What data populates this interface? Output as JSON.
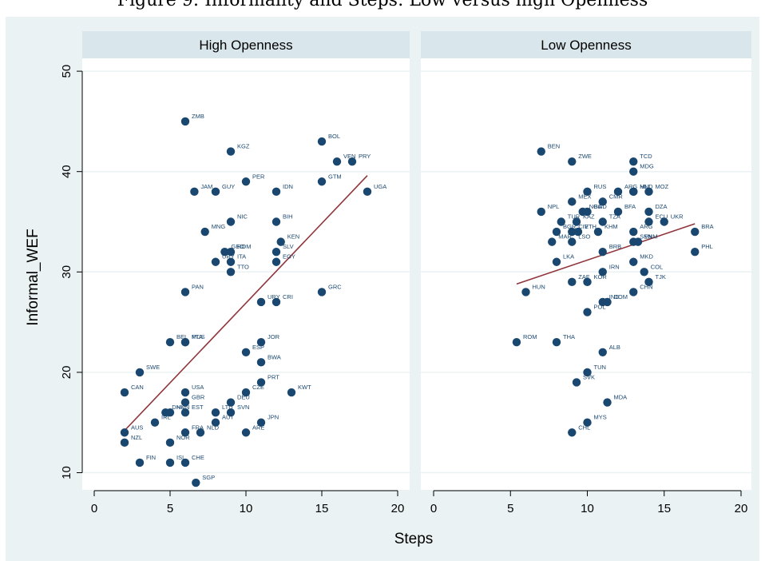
{
  "figure_title": "Figure 9: Informality and Steps: Low versus high Openness",
  "chart_data": {
    "type": "scatter",
    "xlabel": "Steps",
    "ylabel": "Informal_WEF",
    "xlim": [
      0,
      20
    ],
    "ylim": [
      9,
      50
    ],
    "xticks": [
      0,
      5,
      10,
      15,
      20
    ],
    "yticks": [
      10,
      20,
      30,
      40,
      50
    ],
    "colors": {
      "point": "#1a476f",
      "fit": "#90353b",
      "panel_header": "#d9e6eb",
      "background": "#eaf2f3"
    },
    "panels": [
      {
        "title": "High Openness",
        "fit_line": {
          "x": [
            2,
            18
          ],
          "y": [
            14.2,
            39.6
          ]
        },
        "points": [
          {
            "label": "ZMB",
            "x": 6,
            "y": 45
          },
          {
            "label": "KGZ",
            "x": 9,
            "y": 42
          },
          {
            "label": "BOL",
            "x": 15,
            "y": 43
          },
          {
            "label": "VEN",
            "x": 16,
            "y": 41
          },
          {
            "label": "PRY",
            "x": 17,
            "y": 41
          },
          {
            "label": "PER",
            "x": 10,
            "y": 39
          },
          {
            "label": "GTM",
            "x": 15,
            "y": 39
          },
          {
            "label": "JAM",
            "x": 6.6,
            "y": 38
          },
          {
            "label": "GUY",
            "x": 8,
            "y": 38
          },
          {
            "label": "IDN",
            "x": 12,
            "y": 38
          },
          {
            "label": "UGA",
            "x": 18,
            "y": 38
          },
          {
            "label": "NIC",
            "x": 9,
            "y": 35
          },
          {
            "label": "BIH",
            "x": 12,
            "y": 35
          },
          {
            "label": "MNG",
            "x": 7.3,
            "y": 34
          },
          {
            "label": "KEN",
            "x": 12.3,
            "y": 33
          },
          {
            "label": "GEO",
            "x": 8.6,
            "y": 32
          },
          {
            "label": "ROM",
            "x": 9,
            "y": 32
          },
          {
            "label": "SLV",
            "x": 12,
            "y": 32
          },
          {
            "label": "URY",
            "x": 8,
            "y": 31
          },
          {
            "label": "ITA",
            "x": 9,
            "y": 31
          },
          {
            "label": "EGY",
            "x": 12,
            "y": 31
          },
          {
            "label": "TTO",
            "x": 9,
            "y": 30
          },
          {
            "label": "PAN",
            "x": 6,
            "y": 28
          },
          {
            "label": "GRC",
            "x": 15,
            "y": 28
          },
          {
            "label": "URY",
            "x": 11,
            "y": 27
          },
          {
            "label": "CRI",
            "x": 12,
            "y": 27
          },
          {
            "label": "BEL",
            "x": 5,
            "y": 23
          },
          {
            "label": "PTA",
            "x": 6,
            "y": 23
          },
          {
            "label": "MUS",
            "x": 6,
            "y": 23
          },
          {
            "label": "JOR",
            "x": 11,
            "y": 23
          },
          {
            "label": "ESP",
            "x": 10,
            "y": 22
          },
          {
            "label": "BWA",
            "x": 11,
            "y": 21
          },
          {
            "label": "SWE",
            "x": 3,
            "y": 20
          },
          {
            "label": "PRT",
            "x": 11,
            "y": 19
          },
          {
            "label": "CAN",
            "x": 2,
            "y": 18
          },
          {
            "label": "USA",
            "x": 6,
            "y": 18
          },
          {
            "label": "CZE",
            "x": 10,
            "y": 18
          },
          {
            "label": "KWT",
            "x": 13,
            "y": 18
          },
          {
            "label": "GBR",
            "x": 6,
            "y": 17
          },
          {
            "label": "DEU",
            "x": 9,
            "y": 17
          },
          {
            "label": "DNK",
            "x": 4.7,
            "y": 16
          },
          {
            "label": "HUN",
            "x": 5,
            "y": 16
          },
          {
            "label": "EST",
            "x": 6,
            "y": 16
          },
          {
            "label": "LTU",
            "x": 8,
            "y": 16
          },
          {
            "label": "SVN",
            "x": 9,
            "y": 16
          },
          {
            "label": "IRL",
            "x": 4,
            "y": 15
          },
          {
            "label": "AUT",
            "x": 8,
            "y": 15
          },
          {
            "label": "JPN",
            "x": 11,
            "y": 15
          },
          {
            "label": "AUS",
            "x": 2,
            "y": 14
          },
          {
            "label": "FRA",
            "x": 6,
            "y": 14
          },
          {
            "label": "NLD",
            "x": 7,
            "y": 14
          },
          {
            "label": "ARE",
            "x": 10,
            "y": 14
          },
          {
            "label": "NZL",
            "x": 2,
            "y": 13
          },
          {
            "label": "NOR",
            "x": 5,
            "y": 13
          },
          {
            "label": "FIN",
            "x": 3,
            "y": 11
          },
          {
            "label": "ISL",
            "x": 5,
            "y": 11
          },
          {
            "label": "CHE",
            "x": 6,
            "y": 11
          },
          {
            "label": "SGP",
            "x": 6.7,
            "y": 9
          }
        ]
      },
      {
        "title": "Low Openness",
        "fit_line": {
          "x": [
            5.4,
            17
          ],
          "y": [
            28.8,
            34.8
          ]
        },
        "points": [
          {
            "label": "BEN",
            "x": 7,
            "y": 42
          },
          {
            "label": "ZWE",
            "x": 9,
            "y": 41
          },
          {
            "label": "TCD",
            "x": 13,
            "y": 41
          },
          {
            "label": "MDG",
            "x": 13,
            "y": 40
          },
          {
            "label": "RUS",
            "x": 10,
            "y": 38
          },
          {
            "label": "ARG",
            "x": 12,
            "y": 38
          },
          {
            "label": "MLI",
            "x": 13,
            "y": 38
          },
          {
            "label": "HND",
            "x": 13,
            "y": 38
          },
          {
            "label": "MOZ",
            "x": 14,
            "y": 38
          },
          {
            "label": "MEX",
            "x": 9,
            "y": 37
          },
          {
            "label": "CMR",
            "x": 11,
            "y": 37
          },
          {
            "label": "NPL",
            "x": 7,
            "y": 36
          },
          {
            "label": "NGA",
            "x": 9.7,
            "y": 36
          },
          {
            "label": "BGD",
            "x": 10,
            "y": 36
          },
          {
            "label": "BFA",
            "x": 12,
            "y": 36
          },
          {
            "label": "DZA",
            "x": 14,
            "y": 36
          },
          {
            "label": "TUR",
            "x": 8.3,
            "y": 35
          },
          {
            "label": "KAZ",
            "x": 9.3,
            "y": 35
          },
          {
            "label": "TZA",
            "x": 11,
            "y": 35
          },
          {
            "label": "ECU",
            "x": 14,
            "y": 35
          },
          {
            "label": "UKR",
            "x": 15,
            "y": 35
          },
          {
            "label": "BGR",
            "x": 8,
            "y": 34
          },
          {
            "label": "CIV",
            "x": 9,
            "y": 34
          },
          {
            "label": "ETH",
            "x": 9.4,
            "y": 34
          },
          {
            "label": "KHM",
            "x": 10.7,
            "y": 34
          },
          {
            "label": "ARG",
            "x": 13,
            "y": 34
          },
          {
            "label": "BRA",
            "x": 17,
            "y": 34
          },
          {
            "label": "MAR",
            "x": 7.7,
            "y": 33
          },
          {
            "label": "LSO",
            "x": 9,
            "y": 33
          },
          {
            "label": "SEN",
            "x": 13,
            "y": 33
          },
          {
            "label": "VNM",
            "x": 13.3,
            "y": 33
          },
          {
            "label": "BRB",
            "x": 11,
            "y": 32
          },
          {
            "label": "PHL",
            "x": 17,
            "y": 32
          },
          {
            "label": "LKA",
            "x": 8,
            "y": 31
          },
          {
            "label": "MKD",
            "x": 13,
            "y": 31
          },
          {
            "label": "IRN",
            "x": 11,
            "y": 30
          },
          {
            "label": "COL",
            "x": 13.7,
            "y": 30
          },
          {
            "label": "ZAF",
            "x": 9,
            "y": 29
          },
          {
            "label": "KOR",
            "x": 10,
            "y": 29
          },
          {
            "label": "TJK",
            "x": 14,
            "y": 29
          },
          {
            "label": "HUN",
            "x": 6,
            "y": 28
          },
          {
            "label": "CHN",
            "x": 13,
            "y": 28
          },
          {
            "label": "IND",
            "x": 11,
            "y": 27
          },
          {
            "label": "DOM",
            "x": 11.3,
            "y": 27
          },
          {
            "label": "POL",
            "x": 10,
            "y": 26
          },
          {
            "label": "ROM",
            "x": 5.4,
            "y": 23
          },
          {
            "label": "THA",
            "x": 8,
            "y": 23
          },
          {
            "label": "ALB",
            "x": 11,
            "y": 22
          },
          {
            "label": "TUN",
            "x": 10,
            "y": 20
          },
          {
            "label": "SVK",
            "x": 9.3,
            "y": 19
          },
          {
            "label": "MDA",
            "x": 11.3,
            "y": 17
          },
          {
            "label": "MYS",
            "x": 10,
            "y": 15
          },
          {
            "label": "CHL",
            "x": 9,
            "y": 14
          }
        ]
      }
    ]
  }
}
